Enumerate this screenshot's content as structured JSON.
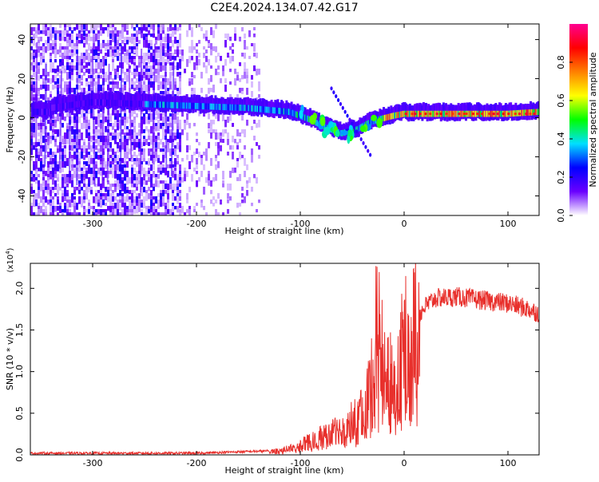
{
  "title": "C2E4.2024.134.07.42.G17",
  "chart_data": [
    {
      "type": "heatmap",
      "xlabel": "Height of straight line (km)",
      "ylabel": "Frequency (Hz)",
      "xlim": [
        -360,
        130
      ],
      "ylim": [
        -50,
        48
      ],
      "xticks": [
        -300,
        -200,
        -100,
        0,
        100
      ],
      "yticks": [
        -40,
        -20,
        0,
        20,
        40
      ],
      "colorbar": {
        "label": "Normalized spectral amplitude",
        "range": [
          0,
          1
        ],
        "ticks": [
          "0.0",
          "0.2",
          "0.4",
          "0.6",
          "0.8"
        ],
        "colors": [
          "#ffffff",
          "#6a00ff",
          "#0000ff",
          "#00e0ff",
          "#00ff00",
          "#ffff00",
          "#ff8000",
          "#ff0000",
          "#ff0090"
        ]
      },
      "ridge": [
        {
          "x": -340,
          "y": 5
        },
        {
          "x": -300,
          "y": 8
        },
        {
          "x": -250,
          "y": 7
        },
        {
          "x": -200,
          "y": 6
        },
        {
          "x": -150,
          "y": 5
        },
        {
          "x": -110,
          "y": 3
        },
        {
          "x": -90,
          "y": -1
        },
        {
          "x": -75,
          "y": -5
        },
        {
          "x": -60,
          "y": -8
        },
        {
          "x": -45,
          "y": -6
        },
        {
          "x": -35,
          "y": -3
        },
        {
          "x": -25,
          "y": -1
        },
        {
          "x": -10,
          "y": 1
        },
        {
          "x": 0,
          "y": 2
        },
        {
          "x": 20,
          "y": 2
        },
        {
          "x": 60,
          "y": 2
        },
        {
          "x": 100,
          "y": 2
        },
        {
          "x": 130,
          "y": 3
        }
      ]
    },
    {
      "type": "line",
      "xlabel": "Height of straight line (km)",
      "ylabel": "SNR (10 * v/v)",
      "yscale_label": "(x10",
      "yscale_exp": "4",
      "yscale_close": ")",
      "xlim": [
        -360,
        130
      ],
      "ylim": [
        0,
        2.3
      ],
      "xticks": [
        -300,
        -200,
        -100,
        0,
        100
      ],
      "yticks": [
        "0.0",
        "0.5",
        "1.0",
        "1.5",
        "2.0"
      ],
      "series": [
        {
          "color": "#e8302c",
          "x": [
            -360,
            -200,
            -150,
            -120,
            -100,
            -80,
            -60,
            -45,
            -35,
            -28,
            -22,
            -18,
            -12,
            -5,
            0,
            10,
            20,
            30,
            50,
            80,
            100,
            120,
            130
          ],
          "y": [
            0.02,
            0.02,
            0.04,
            0.05,
            0.12,
            0.22,
            0.32,
            0.45,
            0.75,
            1.05,
            1.3,
            1.0,
            0.95,
            1.15,
            1.35,
            1.6,
            1.78,
            1.88,
            1.9,
            1.85,
            1.82,
            1.75,
            1.7
          ]
        }
      ]
    }
  ]
}
